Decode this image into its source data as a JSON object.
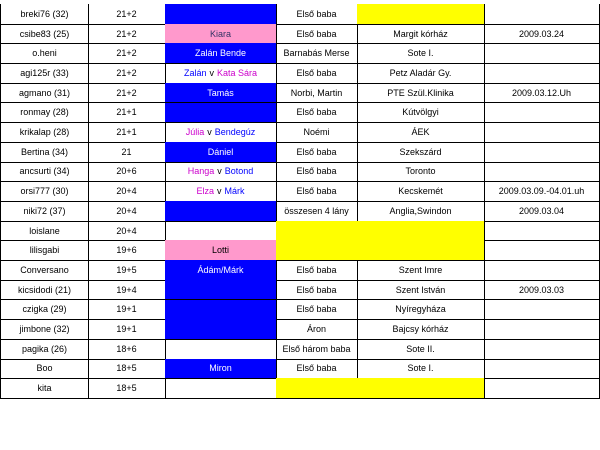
{
  "table": {
    "rows": [
      {
        "cells": [
          {
            "text": "breki76  (32)"
          },
          {
            "text": "21+2"
          },
          {
            "fill": "#0000ff"
          },
          {
            "text": "Első baba"
          },
          {
            "fill": "#ffff00"
          },
          null
        ]
      },
      {
        "cells": [
          {
            "text": "csibe83  (25)"
          },
          {
            "text": "21+2"
          },
          {
            "fill": "#ff99cc",
            "parts": [
              {
                "text": "Kiara",
                "color": "#333366"
              }
            ]
          },
          {
            "text": "Első baba"
          },
          {
            "text": "Margit kórház"
          },
          {
            "text": "2009.03.24"
          }
        ]
      },
      {
        "cells": [
          {
            "text": "o.heni"
          },
          {
            "text": "21+2"
          },
          {
            "fill": "#0000ff",
            "parts": [
              {
                "text": "Zalán Bende",
                "color": "#ffffff"
              }
            ]
          },
          {
            "text": "Barnabás Merse"
          },
          {
            "text": "Sote I."
          },
          null
        ]
      },
      {
        "cells": [
          {
            "text": "agi125r (33)"
          },
          {
            "text": "21+2"
          },
          {
            "parts": [
              {
                "text": "Zalán",
                "color": "#0000ff"
              },
              {
                "text": "v",
                "color": "#000000"
              },
              {
                "text": "Kata Sára",
                "color": "#cc00cc"
              }
            ]
          },
          {
            "text": "Első baba"
          },
          {
            "text": "Petz Aladár Gy."
          },
          null
        ]
      },
      {
        "cells": [
          {
            "text": "agmano (31)"
          },
          {
            "text": "21+2"
          },
          {
            "fill": "#0000ff",
            "parts": [
              {
                "text": "Tamás",
                "color": "#ffffff"
              }
            ]
          },
          {
            "text": "Norbi, Martin"
          },
          {
            "text": "PTE Szül.Klinika"
          },
          {
            "text": "2009.03.12.Uh"
          }
        ]
      },
      {
        "cells": [
          {
            "text": "ronmay  (28)"
          },
          {
            "text": "21+1"
          },
          {
            "fill": "#0000ff"
          },
          {
            "text": "Első baba"
          },
          {
            "text": "Kútvölgyi"
          },
          null
        ]
      },
      {
        "cells": [
          {
            "text": "krikalap (28)"
          },
          {
            "text": "21+1"
          },
          {
            "parts": [
              {
                "text": "Júlia",
                "color": "#cc00cc"
              },
              {
                "text": "v",
                "color": "#000000"
              },
              {
                "text": "Bendegúz",
                "color": "#0000ff"
              }
            ]
          },
          {
            "text": "Noémi"
          },
          {
            "text": "ÁEK"
          },
          null
        ]
      },
      {
        "cells": [
          {
            "text": "Bertina  (34)"
          },
          {
            "text": "21"
          },
          {
            "fill": "#0000ff",
            "parts": [
              {
                "text": "Dániel",
                "color": "#ffffff"
              }
            ]
          },
          {
            "text": "Első baba"
          },
          {
            "text": "Szekszárd"
          },
          null
        ]
      },
      {
        "cells": [
          {
            "text": "ancsurti (34)"
          },
          {
            "text": "20+6"
          },
          {
            "parts": [
              {
                "text": "Hanga",
                "color": "#cc00cc"
              },
              {
                "text": "v",
                "color": "#000000"
              },
              {
                "text": "Botond",
                "color": "#0000ff"
              }
            ]
          },
          {
            "text": "Első baba"
          },
          {
            "text": "Toronto"
          },
          null
        ]
      },
      {
        "cells": [
          {
            "text": "orsi777   (30)"
          },
          {
            "text": "20+4"
          },
          {
            "parts": [
              {
                "text": "Elza",
                "color": "#cc00cc"
              },
              {
                "text": "v",
                "color": "#000000"
              },
              {
                "text": "Márk",
                "color": "#0000ff"
              }
            ]
          },
          {
            "text": "Első baba"
          },
          {
            "text": "Kecskemét"
          },
          {
            "text": "2009.03.09.-04.01.uh"
          }
        ]
      },
      {
        "cells": [
          {
            "text": "niki72 (37)"
          },
          {
            "text": "20+4"
          },
          {
            "fill": "#0000ff"
          },
          {
            "text": "összesen 4 lány"
          },
          {
            "text": "Anglia,Swindon"
          },
          {
            "text": "2009.03.04"
          }
        ]
      },
      {
        "cells": [
          {
            "text": "loislane"
          },
          {
            "text": "20+4"
          },
          null,
          {
            "fill": "#ffff00"
          },
          {
            "fill": "#ffff00"
          },
          null
        ]
      },
      {
        "cells": [
          {
            "text": "lilisgabi"
          },
          {
            "text": "19+6"
          },
          {
            "fill": "#ff99cc",
            "parts": [
              {
                "text": "Lotti",
                "color": "#000000"
              }
            ]
          },
          {
            "fill": "#ffff00"
          },
          {
            "fill": "#ffff00"
          },
          null
        ]
      },
      {
        "cells": [
          {
            "text": "Conversano"
          },
          {
            "text": "19+5"
          },
          {
            "fill": "#0000ff",
            "parts": [
              {
                "text": "Ádám/Márk",
                "color": "#ffffff"
              }
            ]
          },
          {
            "text": "Első baba"
          },
          {
            "text": "Szent Imre"
          },
          null
        ]
      },
      {
        "cells": [
          {
            "text": "kicsidodi (21)"
          },
          {
            "text": "19+4"
          },
          {
            "fill": "#0000ff"
          },
          {
            "text": "Első baba"
          },
          {
            "text": "Szent István"
          },
          {
            "text": "2009.03.03"
          }
        ]
      },
      {
        "cells": [
          {
            "text": "czigka  (29)"
          },
          {
            "text": "19+1"
          },
          {
            "fill": "#0000ff"
          },
          {
            "text": "Első baba"
          },
          {
            "text": "Nyíregyháza"
          },
          null
        ]
      },
      {
        "cells": [
          {
            "text": "jimbone  (32)"
          },
          {
            "text": "19+1"
          },
          {
            "fill": "#0000ff"
          },
          {
            "text": "Áron"
          },
          {
            "text": "Bajcsy kórház"
          },
          null
        ]
      },
      {
        "cells": [
          {
            "text": "pagika (26)"
          },
          {
            "text": "18+6"
          },
          null,
          {
            "text": "Első három baba"
          },
          {
            "text": "Sote II."
          },
          null
        ]
      },
      {
        "cells": [
          {
            "text": "Boo"
          },
          {
            "text": "18+5"
          },
          {
            "fill": "#0000ff",
            "parts": [
              {
                "text": "Miron",
                "color": "#ffffff"
              }
            ]
          },
          {
            "text": "Első baba"
          },
          {
            "text": "Sote I."
          },
          null
        ]
      },
      {
        "cells": [
          {
            "text": "kita"
          },
          {
            "text": "18+5"
          },
          null,
          {
            "fill": "#ffff00"
          },
          {
            "fill": "#ffff00"
          },
          null
        ]
      }
    ]
  }
}
